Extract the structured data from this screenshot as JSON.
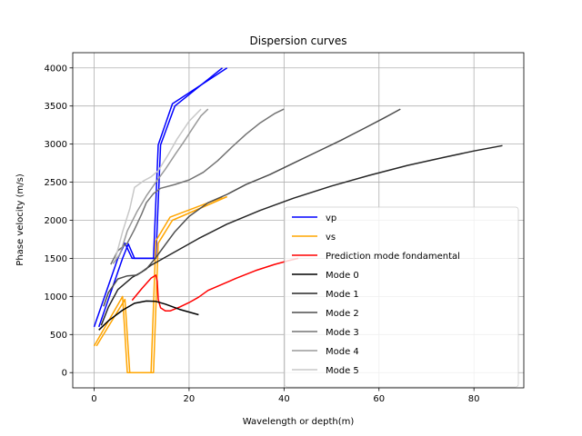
{
  "chart_data": {
    "type": "line",
    "title": "Dispersion curves",
    "xlabel": "Wavelength or depth(m)",
    "ylabel": "Phase velocity (m/s)",
    "xlim": [
      -4.5,
      90.5
    ],
    "ylim": [
      -200,
      4200
    ],
    "xticks": [
      0,
      20,
      40,
      60,
      80
    ],
    "yticks": [
      0,
      500,
      1000,
      1500,
      2000,
      2500,
      3000,
      3500,
      4000
    ],
    "grid": true,
    "legend_position": "lower-right",
    "series": [
      {
        "name": "vp",
        "color": "#0000ff",
        "segments": [
          [
            [
              0,
              600
            ],
            [
              5,
              1500
            ],
            [
              6.5,
              1700
            ],
            [
              8,
              1500
            ],
            [
              12.5,
              1500
            ],
            [
              13.5,
              2990
            ],
            [
              16.5,
              3530
            ],
            [
              28,
              4000
            ]
          ],
          [
            [
              1,
              600
            ],
            [
              6,
              1500
            ],
            [
              7.2,
              1690
            ],
            [
              8.5,
              1500
            ],
            [
              13,
              1500
            ],
            [
              14,
              2990
            ],
            [
              17,
              3500
            ],
            [
              27,
              4000
            ]
          ]
        ]
      },
      {
        "name": "vs",
        "color": "#ffa500",
        "segments": [
          [
            [
              0,
              350
            ],
            [
              6,
              1000
            ],
            [
              7,
              0
            ],
            [
              12,
              0
            ],
            [
              13,
              1730
            ],
            [
              16,
              2040
            ],
            [
              27,
              2300
            ]
          ],
          [
            [
              0.5,
              350
            ],
            [
              6.5,
              960
            ],
            [
              7.5,
              0
            ],
            [
              12.5,
              0
            ],
            [
              13.5,
              1700
            ],
            [
              16.5,
              2000
            ],
            [
              28,
              2310
            ]
          ]
        ]
      },
      {
        "name": "Prediction mode fondamental",
        "color": "#ff0000",
        "segments": [
          [
            [
              8,
              950
            ],
            [
              10,
              1100
            ],
            [
              12,
              1240
            ],
            [
              13,
              1280
            ],
            [
              13.3,
              1200
            ],
            [
              13.5,
              960
            ],
            [
              14,
              850
            ],
            [
              15,
              810
            ],
            [
              16,
              810
            ],
            [
              18,
              860
            ],
            [
              20,
              920
            ],
            [
              22,
              990
            ],
            [
              24,
              1080
            ],
            [
              27,
              1160
            ],
            [
              30,
              1240
            ],
            [
              34,
              1340
            ],
            [
              38,
              1420
            ],
            [
              41,
              1470
            ],
            [
              43,
              1500
            ]
          ]
        ]
      },
      {
        "name": "Mode 0",
        "color": "#000000",
        "segments": [
          [
            [
              1,
              560
            ],
            [
              3,
              680
            ],
            [
              6,
              820
            ],
            [
              8.5,
              910
            ],
            [
              11,
              940
            ],
            [
              13,
              935
            ],
            [
              15,
              900
            ],
            [
              18,
              830
            ],
            [
              22,
              760
            ]
          ]
        ]
      },
      {
        "name": "Mode 1",
        "color": "#262626",
        "segments": [
          [
            [
              1.5,
              620
            ],
            [
              3,
              860
            ],
            [
              5,
              1090
            ],
            [
              8,
              1250
            ],
            [
              10,
              1320
            ],
            [
              12,
              1410
            ],
            [
              14,
              1480
            ],
            [
              18,
              1620
            ],
            [
              22,
              1760
            ],
            [
              28,
              1950
            ],
            [
              35,
              2130
            ],
            [
              42,
              2290
            ],
            [
              50,
              2450
            ],
            [
              58,
              2590
            ],
            [
              66,
              2720
            ],
            [
              74,
              2830
            ],
            [
              80,
              2910
            ],
            [
              86,
              2980
            ]
          ]
        ]
      },
      {
        "name": "Mode 2",
        "color": "#4d4d4d",
        "segments": [
          [
            [
              2,
              870
            ],
            [
              3,
              1050
            ],
            [
              5,
              1230
            ],
            [
              7,
              1270
            ],
            [
              9,
              1280
            ],
            [
              11,
              1360
            ],
            [
              13,
              1510
            ],
            [
              15,
              1680
            ],
            [
              17,
              1850
            ],
            [
              20,
              2050
            ],
            [
              24,
              2230
            ],
            [
              28,
              2340
            ],
            [
              32,
              2470
            ],
            [
              37,
              2600
            ],
            [
              42,
              2750
            ],
            [
              47,
              2900
            ],
            [
              52,
              3050
            ],
            [
              57,
              3210
            ],
            [
              61,
              3340
            ],
            [
              64.5,
              3460
            ]
          ]
        ]
      },
      {
        "name": "Mode 3",
        "color": "#737373",
        "segments": [
          [
            [
              3.5,
              1420
            ],
            [
              5,
              1600
            ],
            [
              7,
              1700
            ],
            [
              8.5,
              1880
            ],
            [
              10,
              2080
            ],
            [
              11,
              2230
            ],
            [
              12.5,
              2350
            ],
            [
              14,
              2420
            ],
            [
              17,
              2470
            ],
            [
              20,
              2530
            ],
            [
              23,
              2630
            ],
            [
              26,
              2780
            ],
            [
              29,
              2960
            ],
            [
              32,
              3130
            ],
            [
              35,
              3280
            ],
            [
              38,
              3400
            ],
            [
              40,
              3460
            ]
          ]
        ]
      },
      {
        "name": "Mode 4",
        "color": "#9a9a9a",
        "segments": [
          [
            [
              4,
              1430
            ],
            [
              5.5,
              1560
            ],
            [
              7,
              1860
            ],
            [
              9,
              2110
            ],
            [
              11,
              2320
            ],
            [
              13,
              2500
            ],
            [
              15,
              2670
            ],
            [
              17,
              2860
            ],
            [
              19,
              3040
            ],
            [
              21,
              3230
            ],
            [
              22.5,
              3370
            ],
            [
              24,
              3460
            ]
          ]
        ]
      },
      {
        "name": "Mode 5",
        "color": "#c8c8c8",
        "segments": [
          [
            [
              4.5,
              1500
            ],
            [
              6,
              1850
            ],
            [
              7.5,
              2150
            ],
            [
              8.5,
              2430
            ],
            [
              10.5,
              2520
            ],
            [
              12,
              2570
            ],
            [
              13.5,
              2650
            ],
            [
              15.5,
              2850
            ],
            [
              17.5,
              3070
            ],
            [
              20,
              3300
            ],
            [
              22.5,
              3460
            ]
          ]
        ]
      }
    ]
  }
}
